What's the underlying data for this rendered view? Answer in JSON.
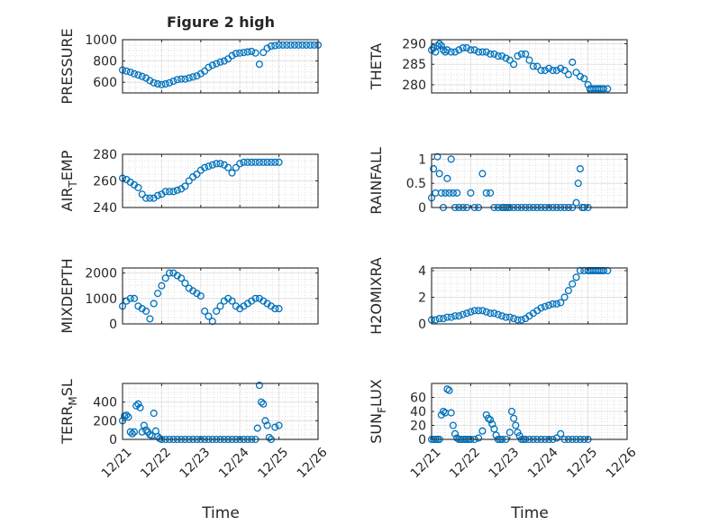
{
  "figure": {
    "title": "Figure 2 high",
    "x_tick_labels": [
      "12/21",
      "12/22",
      "12/23",
      "12/24",
      "12/25",
      "12/26"
    ],
    "x_label": "Time",
    "marker_color": "#0072BD"
  },
  "chart_data": [
    {
      "type": "scatter",
      "ylabel": "PRESSURE",
      "ylim": [
        500,
        1000
      ],
      "yticks": [
        600,
        800,
        1000
      ],
      "xlim": [
        0,
        5
      ],
      "x": [
        0,
        0.1,
        0.2,
        0.3,
        0.4,
        0.5,
        0.6,
        0.7,
        0.8,
        0.9,
        1.0,
        1.1,
        1.2,
        1.3,
        1.4,
        1.5,
        1.6,
        1.7,
        1.8,
        1.9,
        2.0,
        2.1,
        2.2,
        2.3,
        2.4,
        2.5,
        2.6,
        2.7,
        2.8,
        2.9,
        3.0,
        3.1,
        3.2,
        3.3,
        3.4,
        3.5,
        3.6,
        3.7,
        3.8,
        3.9,
        4.0,
        4.1,
        4.2,
        4.3,
        4.4,
        4.5,
        4.6,
        4.7,
        4.8,
        4.9,
        5.0
      ],
      "y": [
        715,
        705,
        695,
        680,
        668,
        655,
        640,
        615,
        595,
        585,
        578,
        585,
        595,
        610,
        625,
        630,
        630,
        640,
        650,
        660,
        680,
        705,
        740,
        760,
        775,
        790,
        800,
        820,
        850,
        870,
        875,
        880,
        885,
        890,
        875,
        770,
        880,
        920,
        940,
        945,
        950,
        950,
        950,
        950,
        950,
        950,
        950,
        950,
        950,
        950,
        950
      ]
    },
    {
      "type": "scatter",
      "ylabel": "THETA",
      "ylim": [
        278,
        291
      ],
      "yticks": [
        280,
        285,
        290
      ],
      "xlim": [
        0,
        5
      ],
      "x": [
        0,
        0.05,
        0.1,
        0.15,
        0.2,
        0.25,
        0.3,
        0.35,
        0.4,
        0.5,
        0.6,
        0.7,
        0.8,
        0.9,
        1.0,
        1.1,
        1.2,
        1.3,
        1.4,
        1.5,
        1.6,
        1.7,
        1.8,
        1.9,
        2.0,
        2.1,
        2.2,
        2.3,
        2.4,
        2.5,
        2.6,
        2.7,
        2.8,
        2.9,
        3.0,
        3.1,
        3.2,
        3.3,
        3.4,
        3.5,
        3.6,
        3.7,
        3.8,
        3.9,
        4.0,
        4.05,
        4.1,
        4.15,
        4.2,
        4.25,
        4.3,
        4.35,
        4.4,
        4.5
      ],
      "y": [
        288.5,
        289,
        288,
        289.5,
        290,
        289.5,
        288.5,
        288,
        288.5,
        288,
        288,
        288.5,
        289,
        289,
        288.5,
        288.5,
        288,
        288,
        288,
        287.5,
        287.5,
        287,
        287,
        286.5,
        286,
        285,
        287,
        287.5,
        287.5,
        286,
        284.5,
        284.5,
        283.5,
        283.5,
        284,
        283.5,
        283.5,
        284,
        283.5,
        282.5,
        285.5,
        283,
        282,
        281.5,
        280,
        279,
        279,
        279,
        279,
        279,
        279,
        279,
        279,
        279
      ]
    },
    {
      "type": "scatter",
      "ylabel": "AIR_TEMP",
      "ylim": [
        240,
        280
      ],
      "yticks": [
        240,
        260,
        280
      ],
      "xlim": [
        0,
        5
      ],
      "x": [
        0,
        0.1,
        0.2,
        0.3,
        0.4,
        0.5,
        0.6,
        0.7,
        0.8,
        0.9,
        1.0,
        1.1,
        1.2,
        1.3,
        1.4,
        1.5,
        1.6,
        1.7,
        1.8,
        1.9,
        2.0,
        2.1,
        2.2,
        2.3,
        2.4,
        2.5,
        2.6,
        2.7,
        2.8,
        2.9,
        3.0,
        3.1,
        3.2,
        3.3,
        3.4,
        3.5,
        3.6,
        3.7,
        3.8,
        3.9,
        4.0
      ],
      "y": [
        262,
        261,
        259,
        257,
        255,
        250,
        247,
        247,
        247,
        249,
        250,
        252,
        252,
        252,
        253,
        254,
        256,
        260,
        263,
        265,
        268,
        270,
        271,
        272,
        273,
        273,
        272,
        270,
        266,
        270,
        273,
        274,
        274,
        274,
        274,
        274,
        274,
        274,
        274,
        274,
        274
      ]
    },
    {
      "type": "scatter",
      "ylabel": "RAINFALL",
      "ylim": [
        0,
        1.1
      ],
      "yticks": [
        0,
        0.5,
        1
      ],
      "xlim": [
        0,
        5
      ],
      "x": [
        0,
        0.05,
        0.1,
        0.15,
        0.2,
        0.25,
        0.3,
        0.35,
        0.4,
        0.45,
        0.5,
        0.55,
        0.6,
        0.65,
        0.7,
        0.8,
        0.9,
        1.0,
        1.1,
        1.2,
        1.3,
        1.4,
        1.5,
        1.6,
        1.7,
        1.8,
        1.85,
        1.9,
        1.95,
        2.0,
        2.1,
        2.2,
        2.3,
        2.4,
        2.5,
        2.6,
        2.7,
        2.8,
        2.9,
        3.0,
        3.1,
        3.2,
        3.3,
        3.4,
        3.5,
        3.6,
        3.7,
        3.75,
        3.8,
        3.85,
        3.9,
        4.0
      ],
      "y": [
        0.2,
        0.8,
        0.3,
        1.05,
        0.7,
        0.3,
        0,
        0.3,
        0.6,
        0.3,
        1.0,
        0.3,
        0,
        0.3,
        0,
        0,
        0,
        0.3,
        0,
        0,
        0.7,
        0.3,
        0.3,
        0,
        0,
        0,
        0,
        0,
        0,
        0,
        0,
        0,
        0,
        0,
        0,
        0,
        0,
        0,
        0,
        0,
        0,
        0,
        0,
        0,
        0,
        0,
        0.1,
        0.5,
        0.8,
        0,
        0,
        0
      ]
    },
    {
      "type": "scatter",
      "ylabel": "MIXDEPTH",
      "ylim": [
        0,
        2200
      ],
      "yticks": [
        0,
        1000,
        2000
      ],
      "xlim": [
        0,
        5
      ],
      "x": [
        0,
        0.1,
        0.2,
        0.3,
        0.4,
        0.5,
        0.6,
        0.7,
        0.8,
        0.9,
        1.0,
        1.1,
        1.2,
        1.3,
        1.4,
        1.5,
        1.6,
        1.7,
        1.8,
        1.9,
        2.0,
        2.1,
        2.2,
        2.3,
        2.4,
        2.5,
        2.6,
        2.7,
        2.8,
        2.9,
        3.0,
        3.1,
        3.2,
        3.3,
        3.4,
        3.5,
        3.6,
        3.7,
        3.8,
        3.9,
        4.0
      ],
      "y": [
        700,
        900,
        1000,
        1000,
        700,
        600,
        500,
        200,
        800,
        1200,
        1500,
        1800,
        2000,
        2000,
        1900,
        1800,
        1600,
        1400,
        1300,
        1200,
        1100,
        500,
        300,
        100,
        500,
        700,
        900,
        1000,
        900,
        700,
        600,
        700,
        800,
        900,
        1000,
        1000,
        900,
        800,
        700,
        600,
        600
      ]
    },
    {
      "type": "scatter",
      "ylabel": "H2OMIXRA",
      "ylim": [
        0,
        4.2
      ],
      "yticks": [
        0,
        2,
        4
      ],
      "xlim": [
        0,
        5
      ],
      "x": [
        0,
        0.1,
        0.2,
        0.3,
        0.4,
        0.5,
        0.6,
        0.7,
        0.8,
        0.9,
        1.0,
        1.1,
        1.2,
        1.3,
        1.4,
        1.5,
        1.6,
        1.7,
        1.8,
        1.9,
        2.0,
        2.1,
        2.2,
        2.3,
        2.4,
        2.5,
        2.6,
        2.7,
        2.8,
        2.9,
        3.0,
        3.1,
        3.2,
        3.3,
        3.4,
        3.5,
        3.6,
        3.7,
        3.8,
        3.9,
        4.0,
        4.05,
        4.1,
        4.15,
        4.2,
        4.25,
        4.3,
        4.35,
        4.4,
        4.5
      ],
      "y": [
        0.3,
        0.3,
        0.4,
        0.4,
        0.5,
        0.5,
        0.6,
        0.6,
        0.7,
        0.8,
        0.9,
        1.0,
        1.0,
        1.0,
        0.9,
        0.8,
        0.8,
        0.7,
        0.6,
        0.5,
        0.5,
        0.4,
        0.3,
        0.3,
        0.4,
        0.6,
        0.8,
        1.0,
        1.2,
        1.3,
        1.4,
        1.5,
        1.5,
        1.6,
        2.0,
        2.5,
        3.0,
        3.5,
        4.0,
        4.0,
        4.0,
        4.0,
        4.0,
        4.0,
        4.0,
        4.0,
        4.0,
        4.0,
        4.0,
        4.0
      ]
    },
    {
      "type": "scatter",
      "ylabel": "TERR_MSL",
      "ylim": [
        0,
        600
      ],
      "yticks": [
        0,
        200,
        400
      ],
      "xlim": [
        0,
        5
      ],
      "x": [
        0,
        0.05,
        0.1,
        0.15,
        0.2,
        0.25,
        0.3,
        0.35,
        0.4,
        0.45,
        0.5,
        0.55,
        0.6,
        0.65,
        0.7,
        0.75,
        0.8,
        0.85,
        0.9,
        0.95,
        1.0,
        1.1,
        1.2,
        1.3,
        1.4,
        1.5,
        1.6,
        1.7,
        1.8,
        1.9,
        2.0,
        2.1,
        2.2,
        2.3,
        2.4,
        2.5,
        2.6,
        2.7,
        2.8,
        2.9,
        3.0,
        3.1,
        3.2,
        3.3,
        3.4,
        3.45,
        3.5,
        3.55,
        3.6,
        3.65,
        3.7,
        3.75,
        3.8,
        3.9,
        4.0
      ],
      "y": [
        200,
        250,
        260,
        240,
        80,
        60,
        80,
        360,
        380,
        340,
        80,
        150,
        100,
        80,
        50,
        40,
        280,
        90,
        30,
        10,
        0,
        0,
        0,
        0,
        0,
        0,
        0,
        0,
        0,
        0,
        0,
        0,
        0,
        0,
        0,
        0,
        0,
        0,
        0,
        0,
        0,
        0,
        0,
        0,
        0,
        120,
        580,
        400,
        380,
        200,
        150,
        20,
        0,
        130,
        150
      ]
    },
    {
      "type": "scatter",
      "ylabel": "SUN_FLUX",
      "ylim": [
        0,
        80
      ],
      "yticks": [
        0,
        20,
        40,
        60
      ],
      "xlim": [
        0,
        5
      ],
      "x": [
        0,
        0.05,
        0.1,
        0.15,
        0.2,
        0.25,
        0.3,
        0.35,
        0.4,
        0.45,
        0.5,
        0.55,
        0.6,
        0.65,
        0.7,
        0.75,
        0.8,
        0.85,
        0.9,
        0.95,
        1.0,
        1.1,
        1.2,
        1.3,
        1.4,
        1.45,
        1.5,
        1.55,
        1.6,
        1.65,
        1.7,
        1.75,
        1.8,
        1.9,
        2.0,
        2.05,
        2.1,
        2.15,
        2.2,
        2.25,
        2.3,
        2.35,
        2.4,
        2.5,
        2.6,
        2.7,
        2.8,
        2.9,
        3.0,
        3.1,
        3.2,
        3.3,
        3.4,
        3.5,
        3.6,
        3.7,
        3.8,
        3.9,
        4.0
      ],
      "y": [
        0,
        0,
        0,
        0,
        0,
        35,
        40,
        38,
        72,
        70,
        38,
        20,
        8,
        2,
        0,
        0,
        0,
        0,
        0,
        0,
        0,
        0,
        2,
        12,
        35,
        30,
        28,
        22,
        15,
        6,
        0,
        0,
        0,
        0,
        10,
        40,
        30,
        20,
        10,
        5,
        0,
        0,
        0,
        0,
        0,
        0,
        0,
        0,
        0,
        0,
        2,
        8,
        0,
        0,
        0,
        0,
        0,
        0,
        0
      ]
    }
  ]
}
